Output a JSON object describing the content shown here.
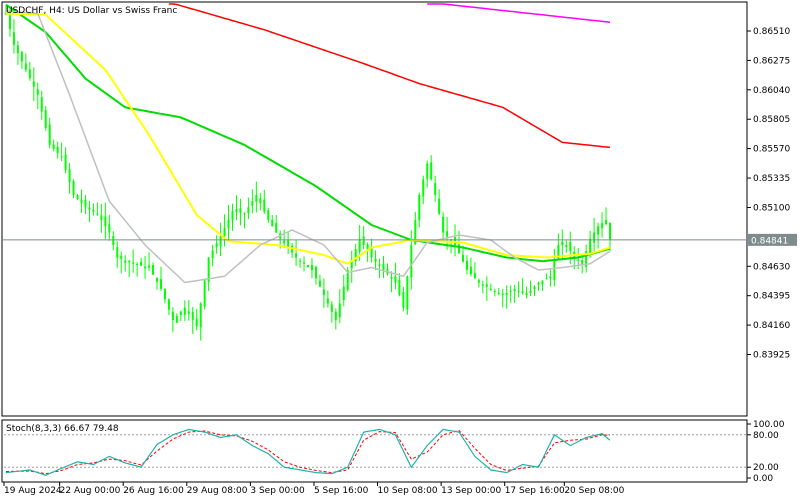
{
  "header": {
    "title": "USDCHF, H4:  US Dollar vs Swiss Franc"
  },
  "oscillator": {
    "label": "Stoch(8,3,3) 66.67 79.48",
    "levels": [
      "100.00",
      "80.00",
      "20.00",
      "0.00"
    ]
  },
  "colors": {
    "background": "#ffffff",
    "candle": "#00ff00",
    "ma_fast": "#c0c0c0",
    "ma_yellow": "#ffff00",
    "ma_green": "#00dc00",
    "ma_red": "#ff0000",
    "ma_magenta": "#ff00ff",
    "price_tag": "#7f8c8d",
    "stoch_main": "#20b2aa",
    "stoch_signal": "#ff0000"
  },
  "chart_data": {
    "type": "line",
    "symbol": "USDCHF",
    "timeframe": "H4",
    "y_ticks": [
      "0.86510",
      "0.86275",
      "0.86040",
      "0.85805",
      "0.85570",
      "0.85335",
      "0.85100",
      "0.84630",
      "0.84395",
      "0.84160",
      "0.83925"
    ],
    "current_price": "0.84841",
    "ylim": [
      0.8375,
      0.8675
    ],
    "x_ticks": [
      "19 Aug 2024",
      "22 Aug 00:00",
      "26 Aug 16:00",
      "29 Aug 08:00",
      "3 Sep 00:00",
      "5 Sep 16:00",
      "10 Sep 08:00",
      "13 Sep 00:00",
      "17 Sep 16:00",
      "20 Sep 08:00"
    ],
    "price_anchors": [
      [
        0,
        0.8665
      ],
      [
        2,
        0.864
      ],
      [
        5,
        0.862
      ],
      [
        8,
        0.86
      ],
      [
        11,
        0.856
      ],
      [
        14,
        0.855
      ],
      [
        17,
        0.852
      ],
      [
        20,
        0.851
      ],
      [
        23,
        0.8505
      ],
      [
        26,
        0.849
      ],
      [
        28,
        0.847
      ],
      [
        32,
        0.8465
      ],
      [
        36,
        0.8462
      ],
      [
        39,
        0.8445
      ],
      [
        42,
        0.842
      ],
      [
        45,
        0.843
      ],
      [
        48,
        0.8415
      ],
      [
        51,
        0.847
      ],
      [
        54,
        0.8487
      ],
      [
        57,
        0.8507
      ],
      [
        60,
        0.8505
      ],
      [
        63,
        0.852
      ],
      [
        66,
        0.85
      ],
      [
        69,
        0.8485
      ],
      [
        73,
        0.847
      ],
      [
        77,
        0.846
      ],
      [
        80,
        0.844
      ],
      [
        83,
        0.842
      ],
      [
        86,
        0.846
      ],
      [
        89,
        0.8485
      ],
      [
        92,
        0.847
      ],
      [
        95,
        0.846
      ],
      [
        98,
        0.845
      ],
      [
        100,
        0.843
      ],
      [
        102,
        0.848
      ],
      [
        104,
        0.852
      ],
      [
        106,
        0.8545
      ],
      [
        108,
        0.852
      ],
      [
        110,
        0.849
      ],
      [
        113,
        0.848
      ],
      [
        116,
        0.846
      ],
      [
        119,
        0.845
      ],
      [
        122,
        0.8445
      ],
      [
        125,
        0.844
      ],
      [
        128,
        0.8445
      ],
      [
        131,
        0.844
      ],
      [
        134,
        0.845
      ],
      [
        137,
        0.8455
      ],
      [
        139,
        0.848
      ],
      [
        141,
        0.848
      ],
      [
        143,
        0.847
      ],
      [
        145,
        0.8465
      ],
      [
        147,
        0.8485
      ],
      [
        149,
        0.8495
      ],
      [
        151,
        0.85
      ],
      [
        152,
        0.8484
      ]
    ],
    "series": [
      {
        "name": "",
        "color": "#ff00ff",
        "anchors": [
          [
            106,
            0.8674
          ],
          [
            152,
            0.8658
          ]
        ]
      },
      {
        "name": "",
        "color": "#ff0000",
        "anchors": [
          [
            41,
            0.8674
          ],
          [
            65,
            0.8652
          ],
          [
            90,
            0.8625
          ],
          [
            104,
            0.8609
          ],
          [
            125,
            0.859
          ],
          [
            140,
            0.8562
          ],
          [
            152,
            0.8558
          ]
        ]
      },
      {
        "name": "",
        "color": "#00dc00",
        "anchors": [
          [
            0,
            0.8672
          ],
          [
            10,
            0.865
          ],
          [
            20,
            0.8613
          ],
          [
            30,
            0.859
          ],
          [
            44,
            0.8582
          ],
          [
            60,
            0.856
          ],
          [
            78,
            0.8527
          ],
          [
            92,
            0.8496
          ],
          [
            102,
            0.8484
          ],
          [
            115,
            0.8478
          ],
          [
            126,
            0.847
          ],
          [
            135,
            0.8467
          ],
          [
            144,
            0.847
          ],
          [
            152,
            0.8477
          ]
        ]
      },
      {
        "name": "",
        "color": "#ffff00",
        "anchors": [
          [
            0,
            0.8665
          ],
          [
            10,
            0.8664
          ],
          [
            25,
            0.862
          ],
          [
            36,
            0.8568
          ],
          [
            48,
            0.8504
          ],
          [
            56,
            0.8483
          ],
          [
            68,
            0.848
          ],
          [
            80,
            0.8472
          ],
          [
            86,
            0.8465
          ],
          [
            92,
            0.8478
          ],
          [
            102,
            0.8484
          ],
          [
            115,
            0.8482
          ],
          [
            126,
            0.8472
          ],
          [
            136,
            0.847
          ],
          [
            147,
            0.8473
          ],
          [
            152,
            0.8478
          ]
        ]
      },
      {
        "name": "",
        "color": "#c0c0c0",
        "anchors": [
          [
            0,
            0.8667
          ],
          [
            8,
            0.8665
          ],
          [
            16,
            0.86
          ],
          [
            26,
            0.8515
          ],
          [
            35,
            0.848
          ],
          [
            45,
            0.845
          ],
          [
            55,
            0.8455
          ],
          [
            64,
            0.848
          ],
          [
            72,
            0.8492
          ],
          [
            80,
            0.848
          ],
          [
            86,
            0.8458
          ],
          [
            92,
            0.8462
          ],
          [
            100,
            0.8455
          ],
          [
            106,
            0.8482
          ],
          [
            114,
            0.8488
          ],
          [
            122,
            0.8484
          ],
          [
            128,
            0.847
          ],
          [
            134,
            0.846
          ],
          [
            140,
            0.8462
          ],
          [
            147,
            0.8465
          ],
          [
            152,
            0.8475
          ]
        ]
      }
    ],
    "stochastic": {
      "ylim": [
        0,
        100
      ],
      "main_anchors": [
        [
          0,
          10
        ],
        [
          6,
          15
        ],
        [
          10,
          5
        ],
        [
          14,
          18
        ],
        [
          18,
          30
        ],
        [
          22,
          25
        ],
        [
          26,
          40
        ],
        [
          30,
          28
        ],
        [
          34,
          20
        ],
        [
          38,
          62
        ],
        [
          42,
          80
        ],
        [
          46,
          90
        ],
        [
          50,
          85
        ],
        [
          54,
          75
        ],
        [
          58,
          80
        ],
        [
          62,
          60
        ],
        [
          66,
          45
        ],
        [
          70,
          20
        ],
        [
          74,
          15
        ],
        [
          78,
          10
        ],
        [
          82,
          8
        ],
        [
          86,
          20
        ],
        [
          90,
          85
        ],
        [
          94,
          90
        ],
        [
          98,
          80
        ],
        [
          102,
          20
        ],
        [
          106,
          60
        ],
        [
          110,
          90
        ],
        [
          114,
          85
        ],
        [
          118,
          40
        ],
        [
          122,
          15
        ],
        [
          126,
          10
        ],
        [
          130,
          25
        ],
        [
          134,
          20
        ],
        [
          138,
          80
        ],
        [
          142,
          60
        ],
        [
          146,
          75
        ],
        [
          150,
          82
        ],
        [
          152,
          70
        ]
      ],
      "signal_anchors": [
        [
          0,
          12
        ],
        [
          6,
          13
        ],
        [
          10,
          8
        ],
        [
          14,
          14
        ],
        [
          18,
          25
        ],
        [
          22,
          28
        ],
        [
          26,
          35
        ],
        [
          30,
          32
        ],
        [
          34,
          24
        ],
        [
          38,
          50
        ],
        [
          42,
          72
        ],
        [
          46,
          85
        ],
        [
          50,
          87
        ],
        [
          54,
          80
        ],
        [
          58,
          78
        ],
        [
          62,
          68
        ],
        [
          66,
          52
        ],
        [
          70,
          30
        ],
        [
          74,
          20
        ],
        [
          78,
          14
        ],
        [
          82,
          10
        ],
        [
          86,
          15
        ],
        [
          90,
          70
        ],
        [
          94,
          86
        ],
        [
          98,
          84
        ],
        [
          102,
          35
        ],
        [
          106,
          48
        ],
        [
          110,
          80
        ],
        [
          114,
          88
        ],
        [
          118,
          55
        ],
        [
          122,
          25
        ],
        [
          126,
          14
        ],
        [
          130,
          18
        ],
        [
          134,
          22
        ],
        [
          138,
          65
        ],
        [
          142,
          70
        ],
        [
          146,
          72
        ],
        [
          150,
          80
        ],
        [
          152,
          79
        ]
      ],
      "levels": [
        100,
        80,
        20,
        0
      ]
    }
  }
}
